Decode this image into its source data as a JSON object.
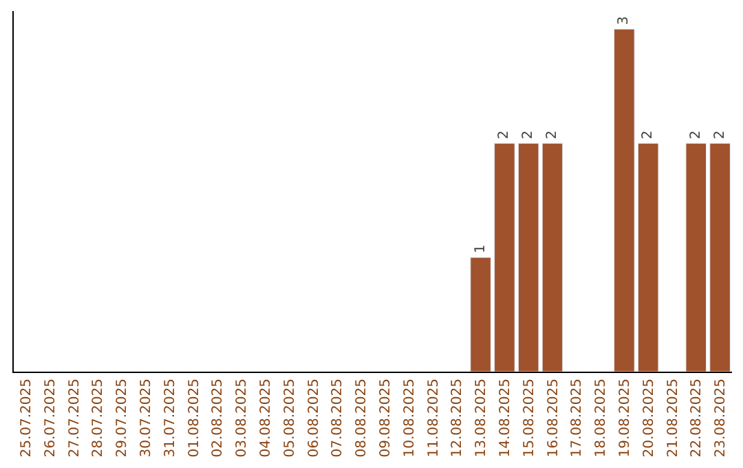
{
  "chart_data": {
    "type": "bar",
    "categories": [
      "25.07.2025",
      "26.07.2025",
      "27.07.2025",
      "28.07.2025",
      "29.07.2025",
      "30.07.2025",
      "31.07.2025",
      "01.08.2025",
      "02.08.2025",
      "03.08.2025",
      "04.08.2025",
      "05.08.2025",
      "06.08.2025",
      "07.08.2025",
      "08.08.2025",
      "09.08.2025",
      "10.08.2025",
      "11.08.2025",
      "12.08.2025",
      "13.08.2025",
      "14.08.2025",
      "15.08.2025",
      "16.08.2025",
      "17.08.2025",
      "18.08.2025",
      "19.08.2025",
      "20.08.2025",
      "21.08.2025",
      "22.08.2025",
      "23.08.2025"
    ],
    "values": [
      null,
      null,
      null,
      null,
      null,
      null,
      null,
      null,
      null,
      null,
      null,
      null,
      null,
      null,
      null,
      null,
      null,
      null,
      null,
      1,
      2,
      2,
      2,
      null,
      null,
      3,
      2,
      null,
      2,
      2
    ],
    "data_labels": true,
    "color": "#a0522d",
    "tick_labels": "x"
  }
}
